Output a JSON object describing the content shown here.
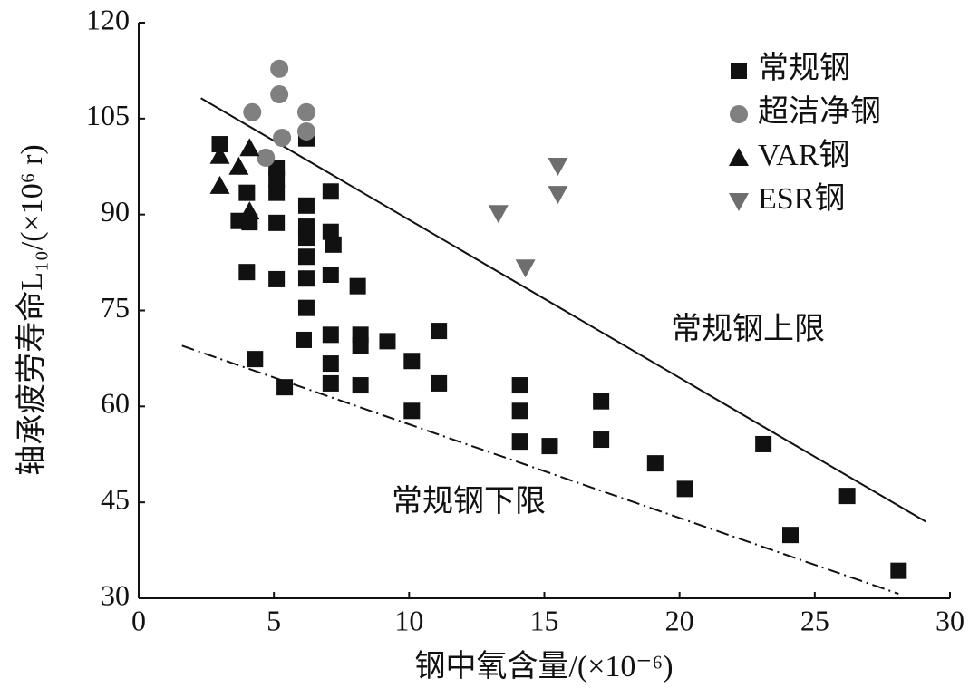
{
  "chart_data": {
    "type": "scatter",
    "xlabel": "钢中氧含量/(×10⁻⁶)",
    "ylabel": "轴承疲劳寿命L₁₀/(×10⁶ r)",
    "xlim": [
      0,
      30
    ],
    "xticks": [
      0,
      5,
      10,
      15,
      20,
      25,
      30
    ],
    "ylim": [
      30,
      120
    ],
    "yticks": [
      30,
      45,
      60,
      75,
      90,
      105,
      120
    ],
    "legend": "upper right",
    "series": [
      {
        "name": "常规钢",
        "marker": "square",
        "color": "#111111",
        "x": [
          3.0,
          4.0,
          4.1,
          3.7,
          4.0,
          4.3,
          5.1,
          5.1,
          5.1,
          5.1,
          5.1,
          5.4,
          6.2,
          6.2,
          6.2,
          6.2,
          6.2,
          6.2,
          6.2,
          6.1,
          7.1,
          7.1,
          7.2,
          7.1,
          7.1,
          7.1,
          7.1,
          8.1,
          8.2,
          8.2,
          8.2,
          9.2,
          10.1,
          10.1,
          11.1,
          11.1,
          14.1,
          14.1,
          14.1,
          15.2,
          17.1,
          17.1,
          19.1,
          20.2,
          23.1,
          24.1,
          26.2,
          28.1
        ],
        "values": [
          101,
          93.4,
          88.8,
          89,
          81,
          67.4,
          97.3,
          95.5,
          93.4,
          88.7,
          79.9,
          63,
          101.9,
          91.4,
          88.1,
          86.4,
          83.4,
          80,
          75.4,
          70.4,
          93.6,
          87.3,
          85.3,
          80.6,
          71.2,
          66.7,
          63.6,
          78.8,
          71.2,
          69.5,
          63.3,
          70.2,
          67.1,
          59.3,
          71.8,
          63.6,
          63.3,
          59.3,
          54.5,
          53.8,
          60.8,
          54.8,
          51.1,
          47.1,
          54.1,
          39.9,
          46,
          34.3
        ]
      },
      {
        "name": "超洁净钢",
        "marker": "circle",
        "color": "#808080",
        "x": [
          4.2,
          5.2,
          5.2,
          4.7,
          5.3,
          6.2,
          6.2
        ],
        "values": [
          106,
          112.8,
          108.8,
          98.9,
          102,
          106,
          103
        ]
      },
      {
        "name": "VAR钢",
        "marker": "triangle-up",
        "color": "#111111",
        "x": [
          3.0,
          3.0,
          3.7,
          4.1,
          4.1
        ],
        "values": [
          99.2,
          94.5,
          97.5,
          100.4,
          90.5
        ]
      },
      {
        "name": "ESR钢",
        "marker": "triangle-down",
        "color": "#6e6e6e",
        "x": [
          13.3,
          15.5,
          15.5,
          14.3
        ],
        "values": [
          90.2,
          97.6,
          93.2,
          81.7
        ]
      }
    ],
    "reference_lines": [
      {
        "label": "常规钢上限",
        "style": "solid",
        "x": [
          2.3,
          29.1
        ],
        "values": [
          108.2,
          42
        ]
      },
      {
        "label": "常规钢下限",
        "style": "dashdot",
        "x": [
          1.6,
          28.1
        ],
        "values": [
          69.5,
          30.7
        ]
      }
    ]
  }
}
